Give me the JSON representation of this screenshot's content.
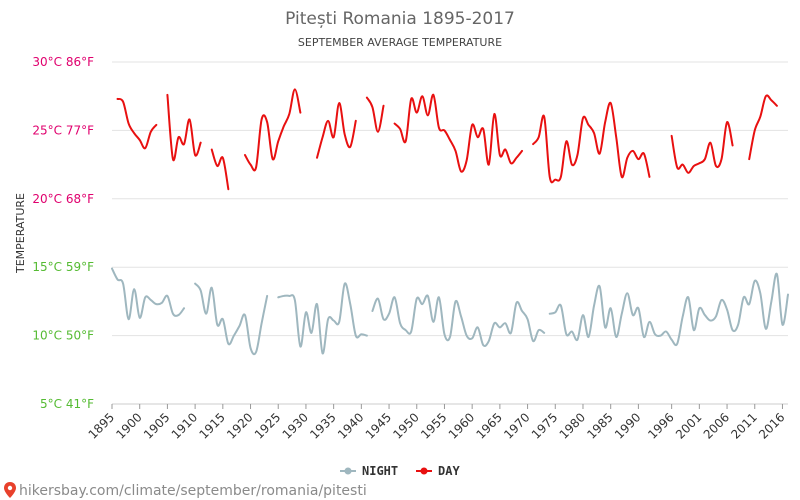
{
  "chart_data": {
    "type": "line",
    "title": "Pitești Romania 1895-2017",
    "subtitle": "SEPTEMBER AVERAGE TEMPERATURE",
    "ylabel": "TEMPERATURE",
    "ylim": [
      5,
      30
    ],
    "grid": true,
    "legend_position": "bottom-center",
    "y_ticks": [
      {
        "value": 30,
        "label": "30°C 86°F",
        "color": "#e0006e"
      },
      {
        "value": 25,
        "label": "25°C 77°F",
        "color": "#e0006e"
      },
      {
        "value": 20,
        "label": "20°C 68°F",
        "color": "#e0006e"
      },
      {
        "value": 15,
        "label": "15°C 59°F",
        "color": "#55bb33"
      },
      {
        "value": 10,
        "label": "10°C 50°F",
        "color": "#55bb33"
      },
      {
        "value": 5,
        "label": "5°C 41°F",
        "color": "#55bb33"
      }
    ],
    "x_range": [
      1895,
      2017
    ],
    "x_ticks": [
      {
        "value": 1895,
        "label": "1895"
      },
      {
        "value": 1900,
        "label": "1900"
      },
      {
        "value": 1905,
        "label": "1905"
      },
      {
        "value": 1910,
        "label": "1910"
      },
      {
        "value": 1915,
        "label": "1915"
      },
      {
        "value": 1920,
        "label": "1920"
      },
      {
        "value": 1925,
        "label": "1925"
      },
      {
        "value": 1930,
        "label": "1930"
      },
      {
        "value": 1935,
        "label": "1935"
      },
      {
        "value": 1940,
        "label": "1940"
      },
      {
        "value": 1945,
        "label": "1945"
      },
      {
        "value": 1950,
        "label": "1950"
      },
      {
        "value": 1955,
        "label": "1955"
      },
      {
        "value": 1960,
        "label": "1960"
      },
      {
        "value": 1965,
        "label": "1965"
      },
      {
        "value": 1970,
        "label": "1970"
      },
      {
        "value": 1975,
        "label": "1975"
      },
      {
        "value": 1980,
        "label": "1980"
      },
      {
        "value": 1985,
        "label": "1985"
      },
      {
        "value": 1990,
        "label": "1990"
      },
      {
        "value": 1996,
        "label": "1996"
      },
      {
        "value": 2001,
        "label": "2001"
      },
      {
        "value": 2006,
        "label": "2006"
      },
      {
        "value": 2011,
        "label": "2011"
      },
      {
        "value": 2016,
        "label": "2016"
      }
    ],
    "series": [
      {
        "name": "NIGHT",
        "color": "#9fb7bf",
        "segments": [
          [
            [
              1895,
              14.9
            ],
            [
              1896,
              14.1
            ],
            [
              1897,
              13.8
            ],
            [
              1898,
              11.2
            ],
            [
              1899,
              13.4
            ],
            [
              1900,
              11.3
            ],
            [
              1901,
              12.8
            ],
            [
              1902,
              12.6
            ],
            [
              1903,
              12.3
            ],
            [
              1904,
              12.4
            ],
            [
              1905,
              12.9
            ],
            [
              1906,
              11.6
            ],
            [
              1907,
              11.5
            ],
            [
              1908,
              12.0
            ]
          ],
          [
            [
              1910,
              13.8
            ],
            [
              1911,
              13.3
            ],
            [
              1912,
              11.6
            ],
            [
              1913,
              13.5
            ],
            [
              1914,
              10.8
            ],
            [
              1915,
              11.2
            ],
            [
              1916,
              9.4
            ],
            [
              1917,
              10.0
            ],
            [
              1918,
              10.7
            ],
            [
              1919,
              11.5
            ],
            [
              1920,
              9.1
            ],
            [
              1921,
              8.8
            ],
            [
              1922,
              10.9
            ],
            [
              1923,
              12.9
            ]
          ],
          [
            [
              1925,
              12.8
            ],
            [
              1926,
              12.9
            ],
            [
              1927,
              12.9
            ],
            [
              1928,
              12.6
            ],
            [
              1929,
              9.2
            ],
            [
              1930,
              11.7
            ],
            [
              1931,
              10.2
            ],
            [
              1932,
              12.3
            ],
            [
              1933,
              8.7
            ],
            [
              1934,
              11.2
            ],
            [
              1935,
              11.1
            ],
            [
              1936,
              11.0
            ],
            [
              1937,
              13.8
            ],
            [
              1938,
              12.3
            ],
            [
              1939,
              10.0
            ],
            [
              1940,
              10.1
            ],
            [
              1941,
              10.0
            ]
          ],
          [
            [
              1942,
              11.8
            ],
            [
              1943,
              12.7
            ],
            [
              1944,
              11.2
            ],
            [
              1945,
              11.6
            ],
            [
              1946,
              12.8
            ],
            [
              1947,
              10.9
            ],
            [
              1948,
              10.4
            ],
            [
              1949,
              10.3
            ],
            [
              1950,
              12.7
            ],
            [
              1951,
              12.3
            ],
            [
              1952,
              12.9
            ],
            [
              1953,
              11.0
            ],
            [
              1954,
              12.8
            ],
            [
              1955,
              10.1
            ],
            [
              1956,
              9.9
            ],
            [
              1957,
              12.5
            ],
            [
              1958,
              11.4
            ],
            [
              1959,
              10.0
            ],
            [
              1960,
              9.8
            ],
            [
              1961,
              10.6
            ],
            [
              1962,
              9.3
            ],
            [
              1963,
              9.6
            ],
            [
              1964,
              10.9
            ],
            [
              1965,
              10.6
            ],
            [
              1966,
              10.9
            ],
            [
              1967,
              10.2
            ],
            [
              1968,
              12.4
            ],
            [
              1969,
              11.8
            ],
            [
              1970,
              11.2
            ],
            [
              1971,
              9.6
            ],
            [
              1972,
              10.4
            ],
            [
              1973,
              10.2
            ]
          ],
          [
            [
              1974,
              11.6
            ],
            [
              1975,
              11.7
            ],
            [
              1976,
              12.2
            ],
            [
              1977,
              10.1
            ],
            [
              1978,
              10.3
            ],
            [
              1979,
              9.7
            ],
            [
              1980,
              11.5
            ],
            [
              1981,
              9.9
            ],
            [
              1982,
              12.2
            ],
            [
              1983,
              13.6
            ],
            [
              1984,
              10.6
            ],
            [
              1985,
              12.0
            ],
            [
              1986,
              9.9
            ],
            [
              1987,
              11.6
            ],
            [
              1988,
              13.1
            ],
            [
              1989,
              11.5
            ],
            [
              1990,
              12.0
            ],
            [
              1991,
              9.9
            ],
            [
              1992,
              11.0
            ],
            [
              1993,
              10.1
            ],
            [
              1994,
              10.0
            ],
            [
              1995,
              10.3
            ],
            [
              1996,
              9.7
            ],
            [
              1997,
              9.4
            ],
            [
              1998,
              11.4
            ],
            [
              1999,
              12.8
            ],
            [
              2000,
              10.4
            ],
            [
              2001,
              12.0
            ],
            [
              2002,
              11.5
            ],
            [
              2003,
              11.1
            ],
            [
              2004,
              11.4
            ],
            [
              2005,
              12.6
            ],
            [
              2006,
              11.9
            ],
            [
              2007,
              10.4
            ],
            [
              2008,
              10.8
            ],
            [
              2009,
              12.8
            ],
            [
              2010,
              12.3
            ],
            [
              2011,
              14.0
            ],
            [
              2012,
              13.1
            ],
            [
              2013,
              10.5
            ],
            [
              2014,
              12.5
            ],
            [
              2015,
              14.5
            ],
            [
              2016,
              10.8
            ],
            [
              2017,
              13.0
            ]
          ]
        ]
      },
      {
        "name": "DAY",
        "color": "#e81010",
        "segments": [
          [
            [
              1896,
              27.3
            ],
            [
              1897,
              27.1
            ],
            [
              1898,
              25.5
            ],
            [
              1899,
              24.8
            ],
            [
              1900,
              24.3
            ],
            [
              1901,
              23.7
            ],
            [
              1902,
              24.9
            ],
            [
              1903,
              25.4
            ]
          ],
          [
            [
              1905,
              27.6
            ],
            [
              1906,
              22.9
            ],
            [
              1907,
              24.5
            ],
            [
              1908,
              24.0
            ],
            [
              1909,
              25.8
            ],
            [
              1910,
              23.2
            ],
            [
              1911,
              24.1
            ]
          ],
          [
            [
              1913,
              23.6
            ],
            [
              1914,
              22.4
            ],
            [
              1915,
              23.0
            ],
            [
              1916,
              20.7
            ]
          ],
          [
            [
              1919,
              23.2
            ],
            [
              1920,
              22.5
            ],
            [
              1921,
              22.3
            ],
            [
              1922,
              25.8
            ],
            [
              1923,
              25.6
            ],
            [
              1924,
              22.9
            ],
            [
              1925,
              24.2
            ],
            [
              1926,
              25.3
            ],
            [
              1927,
              26.2
            ],
            [
              1928,
              28.0
            ],
            [
              1929,
              26.3
            ]
          ],
          [
            [
              1932,
              23.0
            ],
            [
              1933,
              24.5
            ],
            [
              1934,
              25.7
            ],
            [
              1935,
              24.5
            ],
            [
              1936,
              27.0
            ],
            [
              1937,
              24.7
            ],
            [
              1938,
              23.8
            ],
            [
              1939,
              25.7
            ]
          ],
          [
            [
              1941,
              27.4
            ],
            [
              1942,
              26.7
            ],
            [
              1943,
              24.9
            ],
            [
              1944,
              26.8
            ]
          ],
          [
            [
              1946,
              25.5
            ],
            [
              1947,
              25.1
            ],
            [
              1948,
              24.2
            ],
            [
              1949,
              27.3
            ],
            [
              1950,
              26.3
            ],
            [
              1951,
              27.5
            ],
            [
              1952,
              26.1
            ],
            [
              1953,
              27.6
            ],
            [
              1954,
              25.2
            ],
            [
              1955,
              25.0
            ],
            [
              1956,
              24.3
            ],
            [
              1957,
              23.5
            ],
            [
              1958,
              22.0
            ],
            [
              1959,
              22.8
            ],
            [
              1960,
              25.4
            ],
            [
              1961,
              24.5
            ],
            [
              1962,
              25.1
            ],
            [
              1963,
              22.5
            ],
            [
              1964,
              26.2
            ],
            [
              1965,
              23.2
            ],
            [
              1966,
              23.6
            ],
            [
              1967,
              22.6
            ],
            [
              1968,
              23.0
            ],
            [
              1969,
              23.5
            ]
          ],
          [
            [
              1971,
              24.0
            ],
            [
              1972,
              24.5
            ],
            [
              1973,
              26.0
            ],
            [
              1974,
              21.6
            ],
            [
              1975,
              21.4
            ],
            [
              1976,
              21.6
            ],
            [
              1977,
              24.2
            ],
            [
              1978,
              22.5
            ],
            [
              1979,
              23.2
            ],
            [
              1980,
              25.9
            ],
            [
              1981,
              25.4
            ],
            [
              1982,
              24.8
            ],
            [
              1983,
              23.3
            ],
            [
              1984,
              25.6
            ],
            [
              1985,
              27.0
            ],
            [
              1986,
              24.5
            ],
            [
              1987,
              21.6
            ],
            [
              1988,
              23.0
            ],
            [
              1989,
              23.5
            ],
            [
              1990,
              22.9
            ],
            [
              1991,
              23.3
            ],
            [
              1992,
              21.6
            ]
          ],
          [
            [
              1996,
              24.6
            ],
            [
              1997,
              22.3
            ],
            [
              1998,
              22.5
            ],
            [
              1999,
              21.9
            ],
            [
              2000,
              22.4
            ],
            [
              2001,
              22.6
            ],
            [
              2002,
              22.9
            ],
            [
              2003,
              24.1
            ],
            [
              2004,
              22.4
            ],
            [
              2005,
              22.9
            ],
            [
              2006,
              25.6
            ],
            [
              2007,
              23.9
            ]
          ],
          [
            [
              2010,
              22.9
            ],
            [
              2011,
              25.0
            ],
            [
              2012,
              26.0
            ],
            [
              2013,
              27.5
            ],
            [
              2014,
              27.2
            ],
            [
              2015,
              26.8
            ]
          ]
        ]
      }
    ]
  },
  "legend": {
    "night_label": "NIGHT",
    "day_label": "DAY"
  },
  "footer": {
    "text": "hikersbay.com/climate/september/romania/pitesti",
    "icon": "map-pin-icon",
    "icon_color": "#e8412c"
  }
}
